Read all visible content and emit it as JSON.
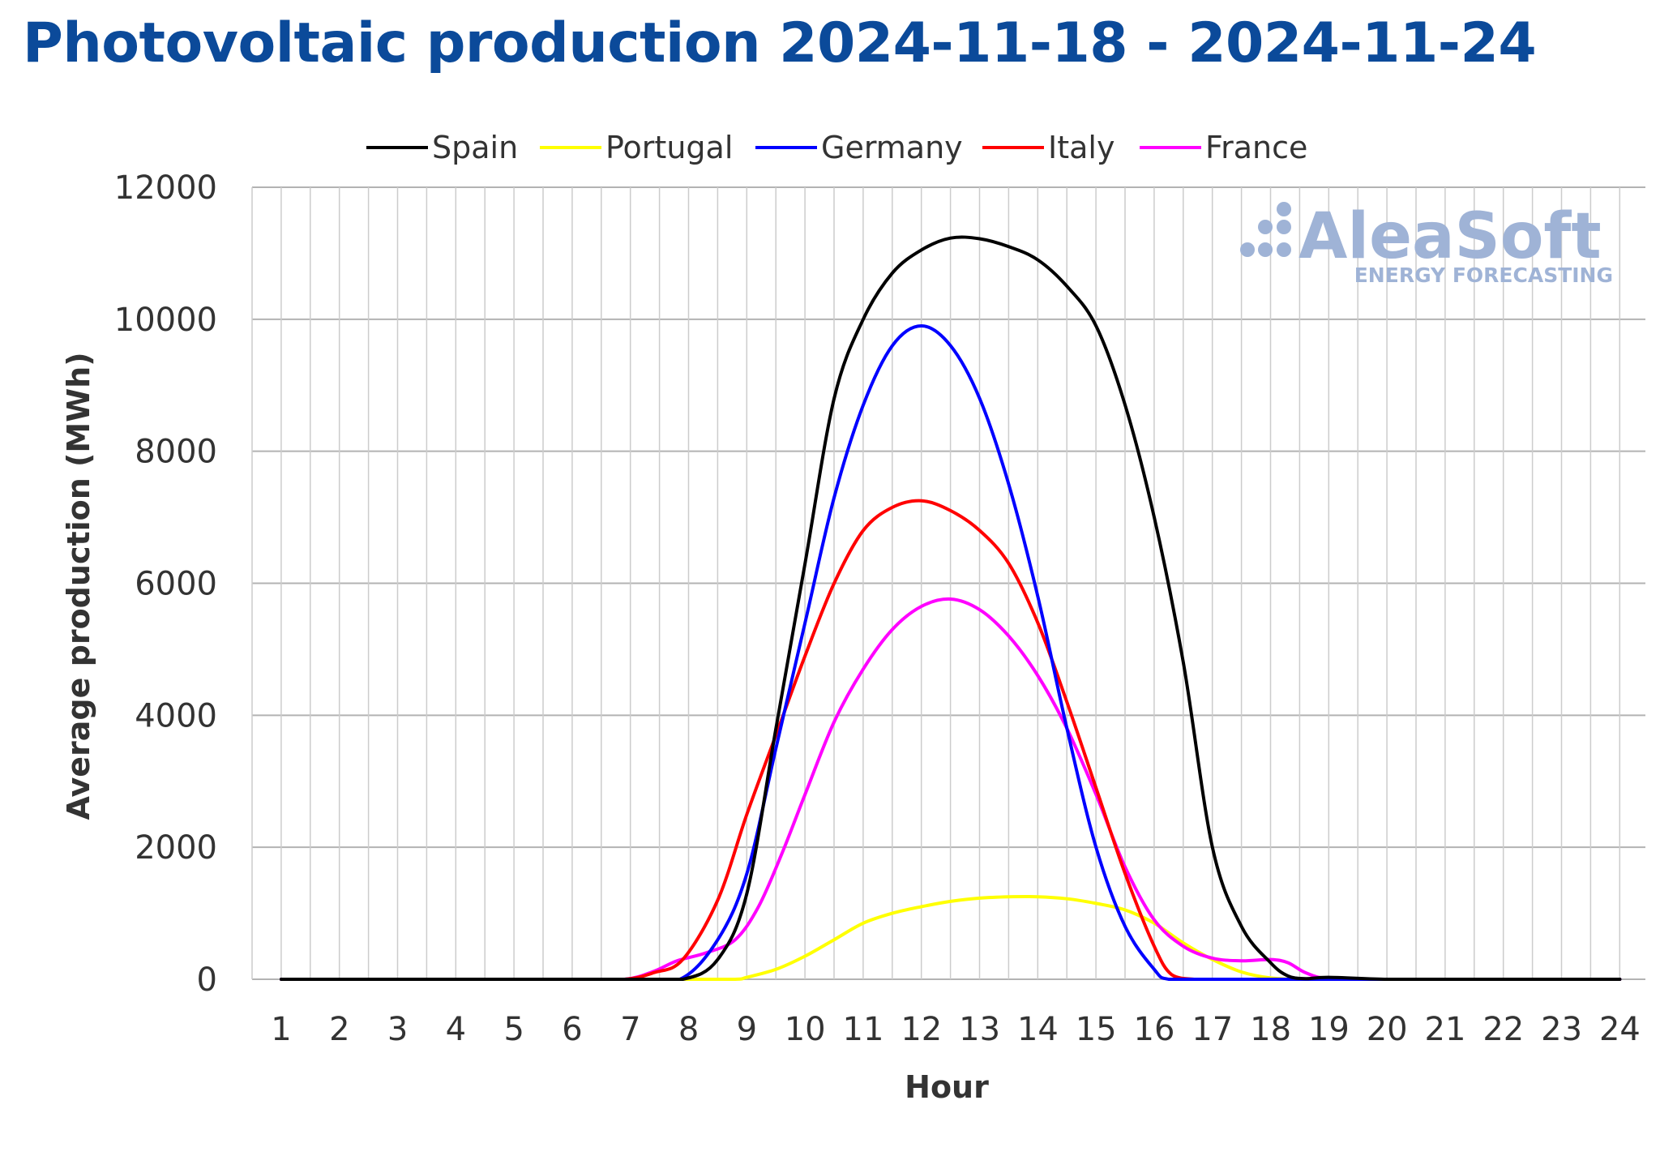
{
  "chart_data": {
    "type": "line",
    "title": "Photovoltaic production 2024-11-18 - 2024-11-24",
    "xlabel": "Hour",
    "ylabel": "Average production (MWh)",
    "x": [
      1,
      2,
      3,
      4,
      5,
      6,
      7,
      8,
      9,
      10,
      11,
      12,
      13,
      14,
      15,
      16,
      17,
      18,
      19,
      20,
      21,
      22,
      23,
      24
    ],
    "ylim": [
      0,
      12000
    ],
    "yticks": [
      0,
      2000,
      4000,
      6000,
      8000,
      10000,
      12000
    ],
    "grid": true,
    "legend_position": "top",
    "series": [
      {
        "name": "Spain",
        "color": "#000000",
        "points": [
          [
            1,
            0
          ],
          [
            2,
            0
          ],
          [
            3,
            0
          ],
          [
            4,
            0
          ],
          [
            5,
            0
          ],
          [
            6,
            0
          ],
          [
            7,
            0
          ],
          [
            7.9,
            0
          ],
          [
            8.5,
            300
          ],
          [
            9,
            1300
          ],
          [
            9.5,
            3800
          ],
          [
            10,
            6300
          ],
          [
            10.5,
            8800
          ],
          [
            11,
            10000
          ],
          [
            11.5,
            10700
          ],
          [
            12,
            11050
          ],
          [
            12.5,
            11230
          ],
          [
            13,
            11220
          ],
          [
            13.5,
            11100
          ],
          [
            14,
            10900
          ],
          [
            14.5,
            10500
          ],
          [
            15,
            9900
          ],
          [
            15.5,
            8700
          ],
          [
            16,
            7000
          ],
          [
            16.5,
            4800
          ],
          [
            17,
            2000
          ],
          [
            17.5,
            800
          ],
          [
            18,
            250
          ],
          [
            18.3,
            50
          ],
          [
            18.6,
            10
          ],
          [
            19,
            30
          ],
          [
            20,
            0
          ],
          [
            21,
            0
          ],
          [
            22,
            0
          ],
          [
            23,
            0
          ],
          [
            24,
            0
          ]
        ]
      },
      {
        "name": "Portugal",
        "color": "#ffff00",
        "points": [
          [
            1,
            0
          ],
          [
            2,
            0
          ],
          [
            3,
            0
          ],
          [
            4,
            0
          ],
          [
            5,
            0
          ],
          [
            6,
            0
          ],
          [
            7,
            0
          ],
          [
            8,
            0
          ],
          [
            8.8,
            0
          ],
          [
            9,
            30
          ],
          [
            9.5,
            150
          ],
          [
            10,
            350
          ],
          [
            10.5,
            600
          ],
          [
            11,
            850
          ],
          [
            11.5,
            1000
          ],
          [
            12,
            1100
          ],
          [
            12.5,
            1180
          ],
          [
            13,
            1230
          ],
          [
            13.5,
            1250
          ],
          [
            14,
            1250
          ],
          [
            14.5,
            1220
          ],
          [
            15,
            1150
          ],
          [
            15.5,
            1050
          ],
          [
            16,
            850
          ],
          [
            16.5,
            550
          ],
          [
            17,
            300
          ],
          [
            17.5,
            110
          ],
          [
            18,
            20
          ],
          [
            18.5,
            0
          ],
          [
            19,
            0
          ],
          [
            20,
            0
          ],
          [
            21,
            0
          ],
          [
            22,
            0
          ],
          [
            23,
            0
          ],
          [
            24,
            0
          ]
        ]
      },
      {
        "name": "Germany",
        "color": "#0000ff",
        "points": [
          [
            1,
            0
          ],
          [
            2,
            0
          ],
          [
            3,
            0
          ],
          [
            4,
            0
          ],
          [
            5,
            0
          ],
          [
            6,
            0
          ],
          [
            7,
            0
          ],
          [
            7.85,
            0
          ],
          [
            8.5,
            600
          ],
          [
            9,
            1600
          ],
          [
            9.5,
            3500
          ],
          [
            10,
            5400
          ],
          [
            10.5,
            7300
          ],
          [
            11,
            8700
          ],
          [
            11.5,
            9600
          ],
          [
            12,
            9900
          ],
          [
            12.5,
            9600
          ],
          [
            13,
            8800
          ],
          [
            13.5,
            7500
          ],
          [
            14,
            5800
          ],
          [
            14.5,
            3800
          ],
          [
            15,
            2000
          ],
          [
            15.5,
            800
          ],
          [
            16,
            150
          ],
          [
            16.25,
            0
          ],
          [
            17,
            0
          ],
          [
            18,
            0
          ],
          [
            19,
            0
          ],
          [
            20,
            0
          ],
          [
            21,
            0
          ],
          [
            22,
            0
          ],
          [
            23,
            0
          ],
          [
            24,
            0
          ]
        ]
      },
      {
        "name": "Italy",
        "color": "#ff0000",
        "points": [
          [
            1,
            0
          ],
          [
            2,
            0
          ],
          [
            3,
            0
          ],
          [
            4,
            0
          ],
          [
            5,
            0
          ],
          [
            6,
            0
          ],
          [
            6.9,
            0
          ],
          [
            7.4,
            100
          ],
          [
            7.9,
            300
          ],
          [
            8.5,
            1200
          ],
          [
            9,
            2500
          ],
          [
            9.5,
            3700
          ],
          [
            10,
            4900
          ],
          [
            10.5,
            6000
          ],
          [
            11,
            6800
          ],
          [
            11.5,
            7150
          ],
          [
            12,
            7250
          ],
          [
            12.5,
            7100
          ],
          [
            13,
            6800
          ],
          [
            13.5,
            6300
          ],
          [
            14,
            5400
          ],
          [
            14.5,
            4200
          ],
          [
            15,
            2900
          ],
          [
            15.5,
            1600
          ],
          [
            16,
            500
          ],
          [
            16.3,
            70
          ],
          [
            16.7,
            0
          ],
          [
            17,
            0
          ],
          [
            18,
            0
          ],
          [
            19,
            0
          ],
          [
            20,
            0
          ],
          [
            21,
            0
          ],
          [
            22,
            0
          ],
          [
            23,
            0
          ],
          [
            24,
            0
          ]
        ]
      },
      {
        "name": "France",
        "color": "#ff00ff",
        "points": [
          [
            1,
            0
          ],
          [
            2,
            0
          ],
          [
            3,
            0
          ],
          [
            4,
            0
          ],
          [
            5,
            0
          ],
          [
            6,
            0
          ],
          [
            6.9,
            0
          ],
          [
            7.4,
            120
          ],
          [
            7.8,
            280
          ],
          [
            8.3,
            400
          ],
          [
            8.8,
            600
          ],
          [
            9.2,
            1100
          ],
          [
            9.6,
            1900
          ],
          [
            10,
            2800
          ],
          [
            10.5,
            3900
          ],
          [
            11,
            4700
          ],
          [
            11.5,
            5300
          ],
          [
            12,
            5650
          ],
          [
            12.5,
            5760
          ],
          [
            13,
            5600
          ],
          [
            13.5,
            5200
          ],
          [
            14,
            4600
          ],
          [
            14.5,
            3800
          ],
          [
            15,
            2800
          ],
          [
            15.5,
            1700
          ],
          [
            16,
            900
          ],
          [
            16.5,
            500
          ],
          [
            17,
            320
          ],
          [
            17.5,
            280
          ],
          [
            18,
            300
          ],
          [
            18.3,
            250
          ],
          [
            18.6,
            100
          ],
          [
            19,
            10
          ],
          [
            20,
            0
          ],
          [
            21,
            0
          ],
          [
            22,
            0
          ],
          [
            23,
            0
          ],
          [
            24,
            0
          ]
        ]
      }
    ]
  },
  "watermark": {
    "brand": "AleaSoft",
    "tagline": "ENERGY FORECASTING"
  }
}
